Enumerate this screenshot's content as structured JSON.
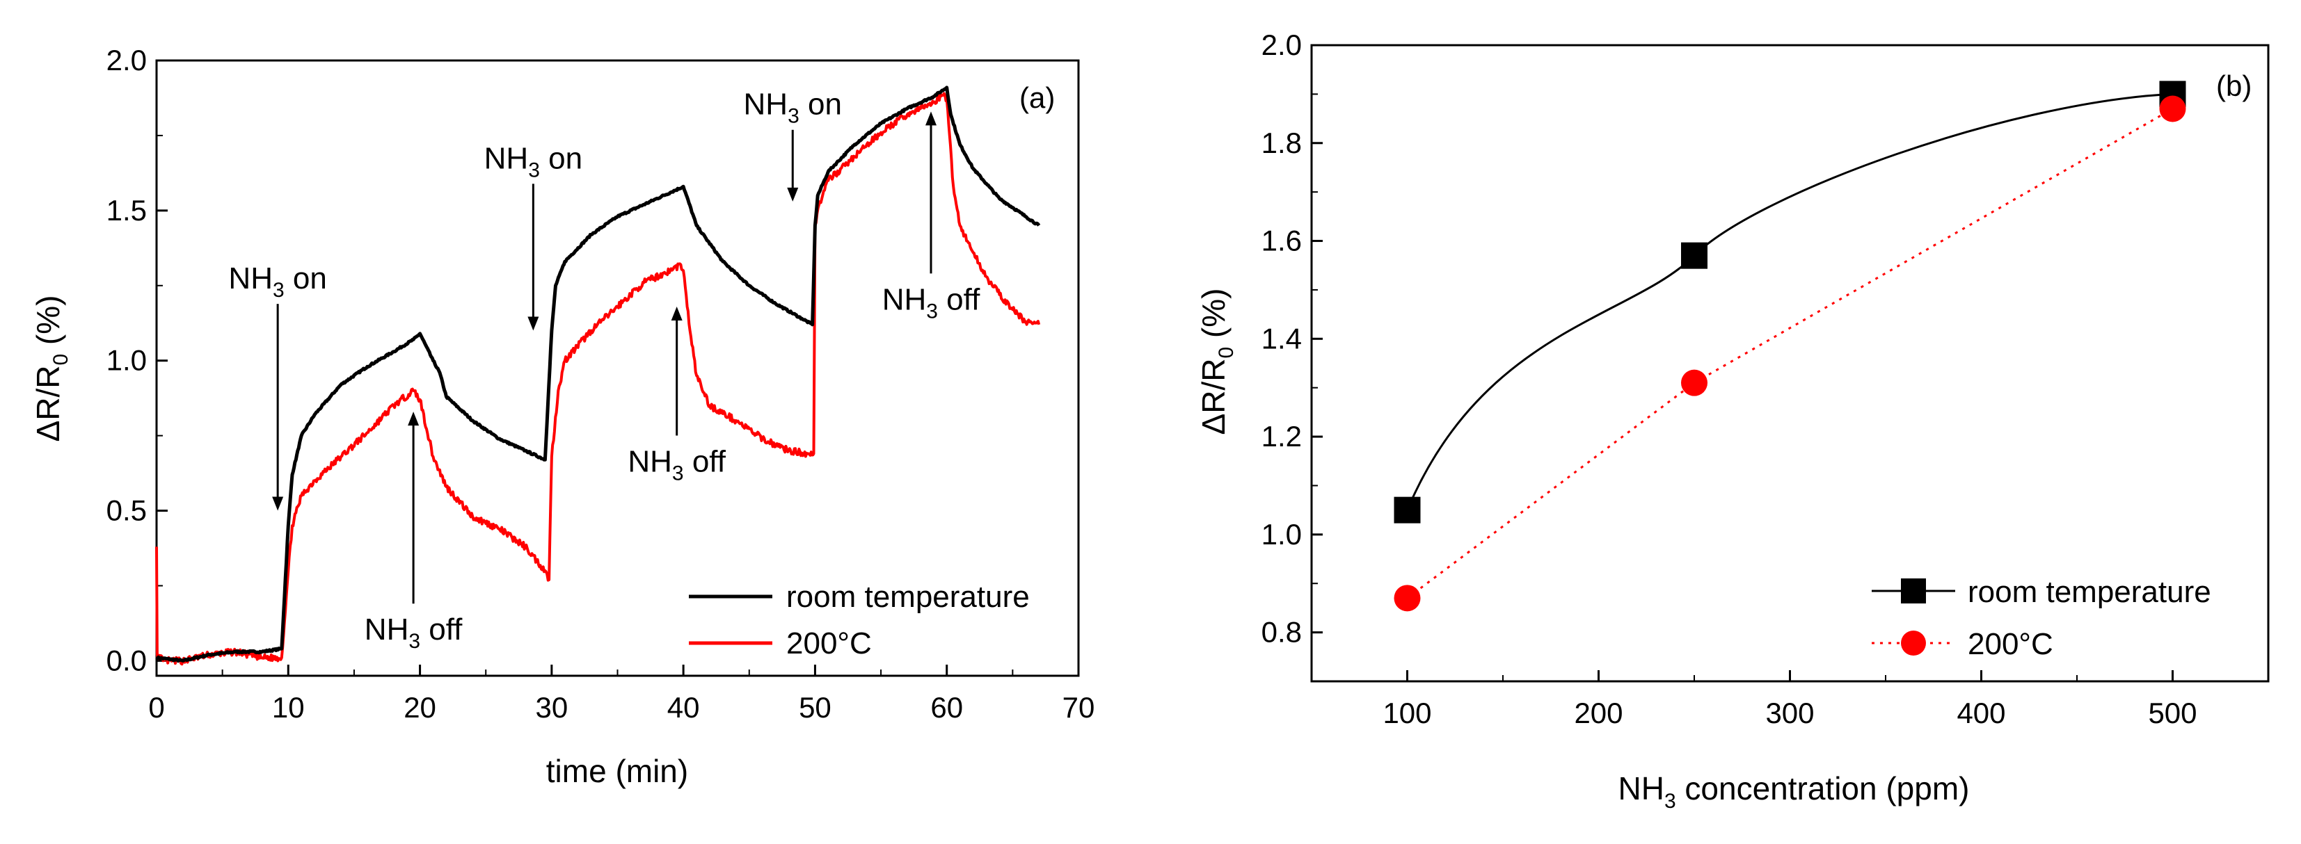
{
  "chart_data": [
    {
      "panel": "(a)",
      "type": "line",
      "xlabel": "time (min)",
      "ylabel": {
        "main": "ΔR/R",
        "sub": "0",
        "unit": " (%)"
      },
      "xlim": [
        0,
        70
      ],
      "ylim": [
        -0.05,
        2.0
      ],
      "xticks": [
        0,
        10,
        20,
        30,
        40,
        50,
        60,
        70
      ],
      "yticks": [
        0.0,
        0.5,
        1.0,
        1.5,
        2.0
      ],
      "ytick_labels": [
        "0.0",
        "0.5",
        "1.0",
        "1.5",
        "2.0"
      ],
      "legend_position": "bottom-right",
      "series": [
        {
          "name": "room temperature",
          "color": "#000000",
          "x": [
            0,
            2,
            4,
            6,
            8,
            9.5,
            10,
            10.3,
            11,
            12,
            14,
            16,
            18,
            19.5,
            20,
            21,
            21.5,
            22,
            24,
            26,
            28,
            29.5,
            30,
            30.3,
            31,
            33,
            35,
            37,
            39,
            40,
            41,
            43,
            45,
            47,
            49,
            49.8,
            50,
            50.2,
            51,
            53,
            55,
            57,
            59,
            60,
            60.3,
            61,
            62,
            63,
            64,
            65,
            66,
            67
          ],
          "y": [
            0.01,
            0.0,
            0.02,
            0.03,
            0.03,
            0.04,
            0.45,
            0.62,
            0.75,
            0.82,
            0.92,
            0.98,
            1.03,
            1.07,
            1.09,
            1.0,
            0.96,
            0.88,
            0.8,
            0.74,
            0.7,
            0.67,
            1.1,
            1.25,
            1.33,
            1.42,
            1.48,
            1.52,
            1.56,
            1.58,
            1.45,
            1.33,
            1.25,
            1.19,
            1.14,
            1.12,
            1.45,
            1.55,
            1.63,
            1.72,
            1.79,
            1.84,
            1.88,
            1.91,
            1.82,
            1.72,
            1.64,
            1.59,
            1.54,
            1.51,
            1.48,
            1.45
          ]
        },
        {
          "name": "200°C",
          "color": "#ff0000",
          "x": [
            0,
            0.05,
            0.5,
            2,
            4,
            6,
            8,
            9.5,
            10,
            10.3,
            11,
            12,
            14,
            16,
            18,
            19.5,
            20,
            21,
            22,
            24,
            26,
            28,
            29.5,
            29.8,
            30,
            30.5,
            31,
            33,
            35,
            37,
            39,
            39.8,
            40,
            40.5,
            41,
            42,
            44,
            46,
            48,
            49.5,
            49.9,
            50,
            50.3,
            51,
            53,
            55,
            57,
            59,
            59.8,
            60,
            60.5,
            61,
            62,
            63,
            64,
            65,
            66,
            67
          ],
          "y": [
            0.38,
            0.02,
            0.0,
            0.0,
            0.02,
            0.03,
            0.01,
            0.01,
            0.3,
            0.45,
            0.55,
            0.6,
            0.68,
            0.76,
            0.85,
            0.9,
            0.87,
            0.68,
            0.58,
            0.48,
            0.44,
            0.38,
            0.3,
            0.27,
            0.68,
            0.9,
            1.0,
            1.1,
            1.18,
            1.26,
            1.3,
            1.32,
            1.3,
            1.1,
            0.95,
            0.85,
            0.8,
            0.74,
            0.7,
            0.69,
            0.69,
            1.45,
            1.52,
            1.6,
            1.68,
            1.76,
            1.82,
            1.86,
            1.89,
            1.87,
            1.58,
            1.45,
            1.36,
            1.28,
            1.22,
            1.17,
            1.13,
            1.12
          ]
        }
      ],
      "annotations": [
        {
          "text": "NH",
          "sub": "3",
          "rest": " on",
          "at": {
            "x": 9.2,
            "y": 1.24
          },
          "arrow_to": {
            "x": 9.2,
            "y": 0.5
          }
        },
        {
          "text": "NH",
          "sub": "3",
          "rest": " off",
          "at": {
            "x": 19.5,
            "y": 0.07
          },
          "arrow_to": {
            "x": 19.5,
            "y": 0.83
          }
        },
        {
          "text": "NH",
          "sub": "3",
          "rest": " on",
          "at": {
            "x": 28.6,
            "y": 1.64
          },
          "arrow_to": {
            "x": 28.6,
            "y": 1.1
          }
        },
        {
          "text": "NH",
          "sub": "3",
          "rest": " off",
          "at": {
            "x": 39.5,
            "y": 0.63
          },
          "arrow_to": {
            "x": 39.5,
            "y": 1.18
          }
        },
        {
          "text": "NH",
          "sub": "3",
          "rest": " on",
          "at": {
            "x": 48.3,
            "y": 1.82
          },
          "arrow_to": {
            "x": 48.3,
            "y": 1.53
          }
        },
        {
          "text": "NH",
          "sub": "3",
          "rest": " off",
          "at": {
            "x": 58.8,
            "y": 1.17
          },
          "arrow_to": {
            "x": 58.8,
            "y": 1.83
          }
        }
      ]
    },
    {
      "panel": "(b)",
      "type": "line",
      "xlabel": {
        "main": "NH",
        "sub": "3",
        "rest": " concentration (ppm)"
      },
      "ylabel": {
        "main": "ΔR/R",
        "sub": "0",
        "unit": " (%)"
      },
      "xlim": [
        50,
        550
      ],
      "ylim": [
        0.7,
        2.0
      ],
      "xticks": [
        100,
        200,
        300,
        400,
        500
      ],
      "yticks": [
        0.8,
        1.0,
        1.2,
        1.4,
        1.6,
        1.8,
        2.0
      ],
      "ytick_labels": [
        "0.8",
        "1.0",
        "1.2",
        "1.4",
        "1.6",
        "1.8",
        "2.0"
      ],
      "legend_position": "bottom-right",
      "series": [
        {
          "name": "room temperature",
          "color": "#000000",
          "marker": "square",
          "line": "solid",
          "x": [
            100,
            250,
            500
          ],
          "y": [
            1.05,
            1.57,
            1.9
          ]
        },
        {
          "name": "200°C",
          "color": "#ff0000",
          "marker": "circle",
          "line": "dotted",
          "x": [
            100,
            250,
            500
          ],
          "y": [
            0.87,
            1.31,
            1.87
          ]
        }
      ]
    }
  ]
}
